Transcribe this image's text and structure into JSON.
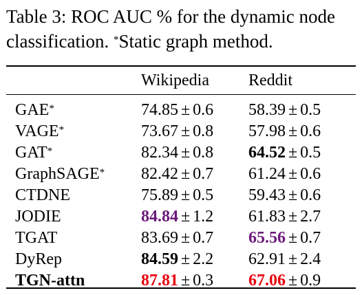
{
  "caption": {
    "line1": "Table 3: ROC AUC % for the dynamic node",
    "line2_main": "classification. ",
    "line2_mark": "*",
    "line2_rest": "Static graph method."
  },
  "colors": {
    "best": "#e8000b",
    "second": "#6b1a7a",
    "plain": "#000000"
  },
  "table": {
    "headers": {
      "method": "",
      "wiki": "Wikipedia",
      "reddit": "Reddit"
    },
    "pm": "±",
    "rows": [
      {
        "method": "GAE",
        "mark": "*",
        "wiki_mean": "74.85",
        "wiki_std": "0.6",
        "reddit_mean": "58.39",
        "reddit_std": "0.5"
      },
      {
        "method": "VAGE",
        "mark": "*",
        "wiki_mean": "73.67",
        "wiki_std": "0.8",
        "reddit_mean": "57.98",
        "reddit_std": "0.6"
      },
      {
        "method": "GAT",
        "mark": "*",
        "wiki_mean": "82.34",
        "wiki_std": "0.8",
        "reddit_mean": "64.52",
        "reddit_std": "0.5",
        "reddit_style": "bold"
      },
      {
        "method": "GraphSAGE",
        "mark": "*",
        "wiki_mean": "82.42",
        "wiki_std": "0.7",
        "reddit_mean": "61.24",
        "reddit_std": "0.6"
      },
      {
        "method": "CTDNE",
        "mark": "",
        "wiki_mean": "75.89",
        "wiki_std": "0.5",
        "reddit_mean": "59.43",
        "reddit_std": "0.6"
      },
      {
        "method": "JODIE",
        "mark": "",
        "wiki_mean": "84.84",
        "wiki_std": "1.2",
        "wiki_style": "second",
        "reddit_mean": "61.83",
        "reddit_std": "2.7"
      },
      {
        "method": "TGAT",
        "mark": "",
        "wiki_mean": "83.69",
        "wiki_std": "0.7",
        "reddit_mean": "65.56",
        "reddit_std": "0.7",
        "reddit_style": "second"
      },
      {
        "method": "DyRep",
        "mark": "",
        "wiki_mean": "84.59",
        "wiki_std": "2.2",
        "wiki_style": "bold",
        "reddit_mean": "62.91",
        "reddit_std": "2.4"
      },
      {
        "method": "TGN-attn",
        "mark": "",
        "method_style": "bold",
        "wiki_mean": "87.81",
        "wiki_std": "0.3",
        "wiki_style": "best",
        "reddit_mean": "67.06",
        "reddit_std": "0.9",
        "reddit_style": "best"
      }
    ]
  }
}
